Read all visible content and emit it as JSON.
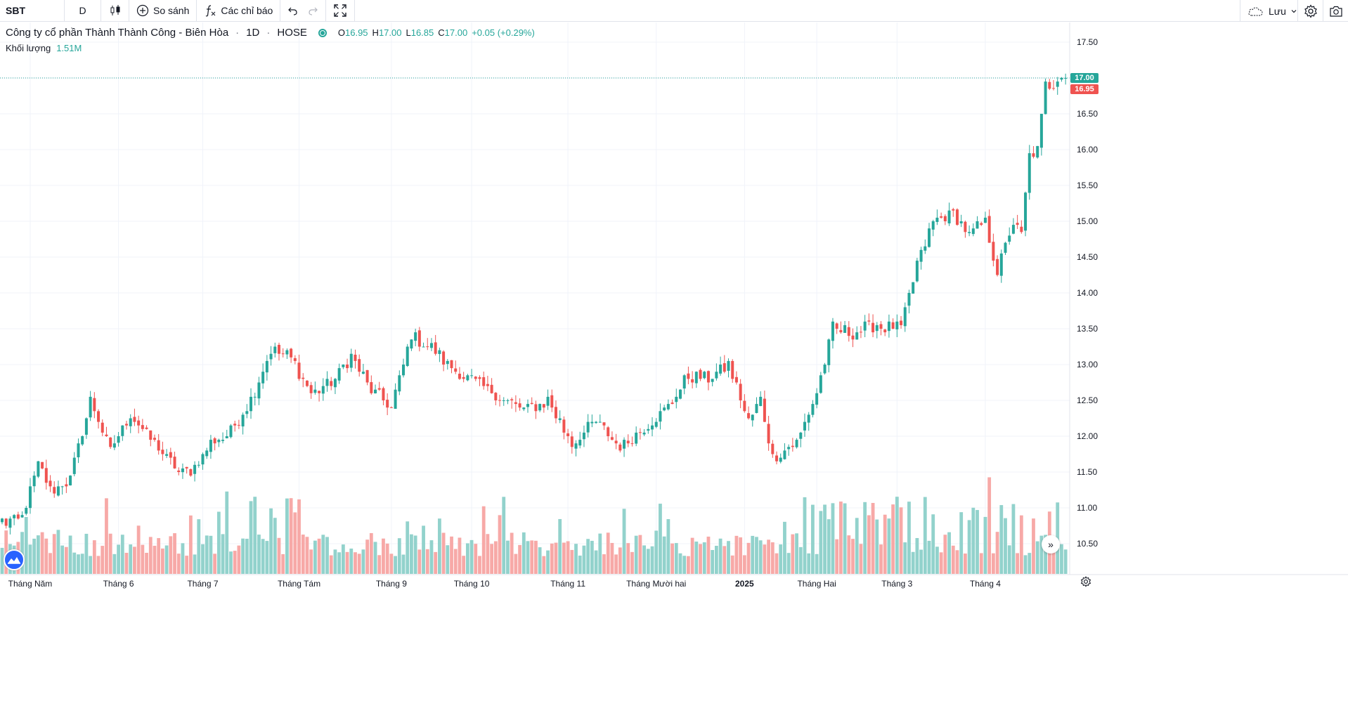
{
  "toolbar": {
    "symbol": "SBT",
    "interval": "D",
    "compare_label": "So sánh",
    "indicators_label": "Các chỉ báo",
    "save_label": "Lưu"
  },
  "legend": {
    "name": "Công ty cổ phần Thành Thành Công - Biên Hòa",
    "interval": "1D",
    "exchange": "HOSE",
    "open_label": "O",
    "open": "16.95",
    "high_label": "H",
    "high": "17.00",
    "low_label": "L",
    "low": "16.85",
    "close_label": "C",
    "close": "17.00",
    "change": "+0.05 (+0.29%)",
    "volume_label": "Khối lượng",
    "volume": "1.51M"
  },
  "price_badges": {
    "last": "17.00",
    "prev": "16.95"
  },
  "colors": {
    "up": "#26a69a",
    "down": "#ef5350",
    "vol_up": "#92d2cc",
    "vol_down": "#f7a9a7",
    "grid": "#f0f3fa"
  },
  "chart_data": {
    "type": "candlestick",
    "y_ticks": [
      "17.50",
      "17.00",
      "16.50",
      "16.00",
      "15.50",
      "15.00",
      "14.50",
      "14.00",
      "13.50",
      "13.00",
      "12.50",
      "12.00",
      "11.50",
      "11.00",
      "10.50"
    ],
    "ylim": [
      10.5,
      17.5
    ],
    "x_labels": [
      {
        "text": "Tháng Năm",
        "idx": 7,
        "bold": false
      },
      {
        "text": "Tháng 6",
        "idx": 29,
        "bold": false
      },
      {
        "text": "Tháng 7",
        "idx": 50,
        "bold": false
      },
      {
        "text": "Tháng Tám",
        "idx": 74,
        "bold": false
      },
      {
        "text": "Tháng 9",
        "idx": 97,
        "bold": false
      },
      {
        "text": "Tháng 10",
        "idx": 117,
        "bold": false
      },
      {
        "text": "Tháng 11",
        "idx": 141,
        "bold": false
      },
      {
        "text": "Tháng Mười hai",
        "idx": 163,
        "bold": false
      },
      {
        "text": "2025",
        "idx": 185,
        "bold": true
      },
      {
        "text": "Tháng Hai",
        "idx": 203,
        "bold": false
      },
      {
        "text": "Tháng 3",
        "idx": 223,
        "bold": false
      },
      {
        "text": "Tháng 4",
        "idx": 245,
        "bold": false
      }
    ],
    "keypoints": [
      [
        0,
        10.8
      ],
      [
        5,
        10.85
      ],
      [
        9,
        11.6
      ],
      [
        12,
        11.25
      ],
      [
        17,
        11.4
      ],
      [
        22,
        12.5
      ],
      [
        27,
        11.8
      ],
      [
        32,
        12.3
      ],
      [
        38,
        11.9
      ],
      [
        44,
        11.5
      ],
      [
        47,
        11.5
      ],
      [
        52,
        11.9
      ],
      [
        57,
        12.05
      ],
      [
        62,
        12.5
      ],
      [
        67,
        13.2
      ],
      [
        72,
        13.1
      ],
      [
        77,
        12.6
      ],
      [
        82,
        12.75
      ],
      [
        87,
        13.1
      ],
      [
        92,
        12.65
      ],
      [
        97,
        12.4
      ],
      [
        102,
        13.4
      ],
      [
        107,
        13.25
      ],
      [
        112,
        12.95
      ],
      [
        118,
        12.75
      ],
      [
        124,
        12.55
      ],
      [
        130,
        12.35
      ],
      [
        136,
        12.5
      ],
      [
        142,
        11.9
      ],
      [
        148,
        12.2
      ],
      [
        154,
        11.85
      ],
      [
        160,
        12.1
      ],
      [
        166,
        12.4
      ],
      [
        171,
        12.85
      ],
      [
        176,
        12.8
      ],
      [
        181,
        13.0
      ],
      [
        186,
        12.2
      ],
      [
        189,
        12.5
      ],
      [
        192,
        11.7
      ],
      [
        198,
        11.9
      ],
      [
        203,
        12.6
      ],
      [
        207,
        13.5
      ],
      [
        212,
        13.45
      ],
      [
        218,
        13.55
      ],
      [
        224,
        13.5
      ],
      [
        228,
        14.4
      ],
      [
        232,
        15.0
      ],
      [
        237,
        15.1
      ],
      [
        241,
        14.8
      ],
      [
        245,
        15.0
      ],
      [
        248,
        14.3
      ],
      [
        252,
        15.0
      ],
      [
        254,
        14.8
      ],
      [
        256,
        15.9
      ],
      [
        258,
        16.0
      ],
      [
        260,
        16.9
      ],
      [
        263,
        16.95
      ],
      [
        265,
        17.0
      ]
    ],
    "volume_range": [
      0,
      2.0
    ],
    "volume_unit": "M"
  }
}
